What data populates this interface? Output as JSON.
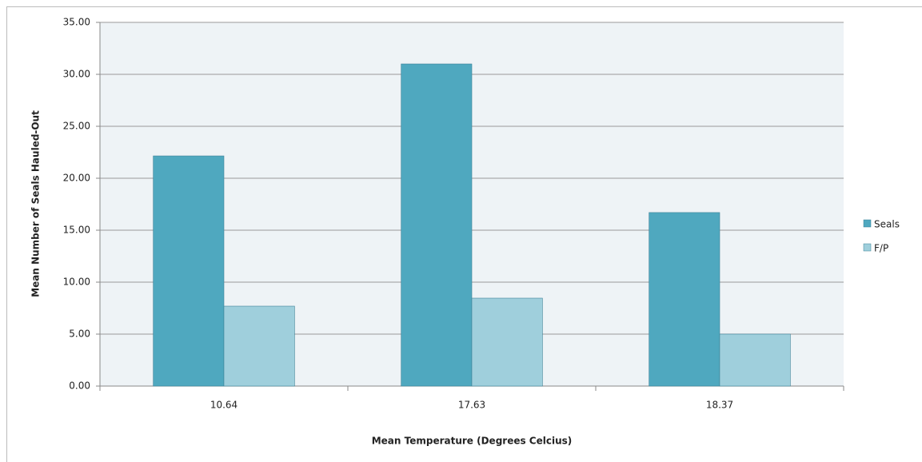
{
  "chart_data": {
    "type": "bar",
    "x_label": "Mean Temperature (Degrees Celcius)",
    "y_label": "Mean Number of Seals Hauled-Out",
    "categories": [
      "10.64",
      "17.63",
      "18.37"
    ],
    "series": [
      {
        "name": "Seals",
        "color": "#4fa8bf",
        "values": [
          22.15,
          31.0,
          16.7
        ]
      },
      {
        "name": "F/P",
        "color": "#9fcfdc",
        "values": [
          7.69,
          8.46,
          5.0
        ]
      }
    ],
    "ylim": [
      0,
      35
    ],
    "yticks": [
      {
        "value": 0,
        "label": "0.00"
      },
      {
        "value": 5,
        "label": "5.00"
      },
      {
        "value": 10,
        "label": "10.00"
      },
      {
        "value": 15,
        "label": "15.00"
      },
      {
        "value": 20,
        "label": "20.00"
      },
      {
        "value": 25,
        "label": "25.00"
      },
      {
        "value": 30,
        "label": "30.00"
      },
      {
        "value": 35,
        "label": "35.00"
      }
    ],
    "grid": true,
    "legend": "right"
  }
}
